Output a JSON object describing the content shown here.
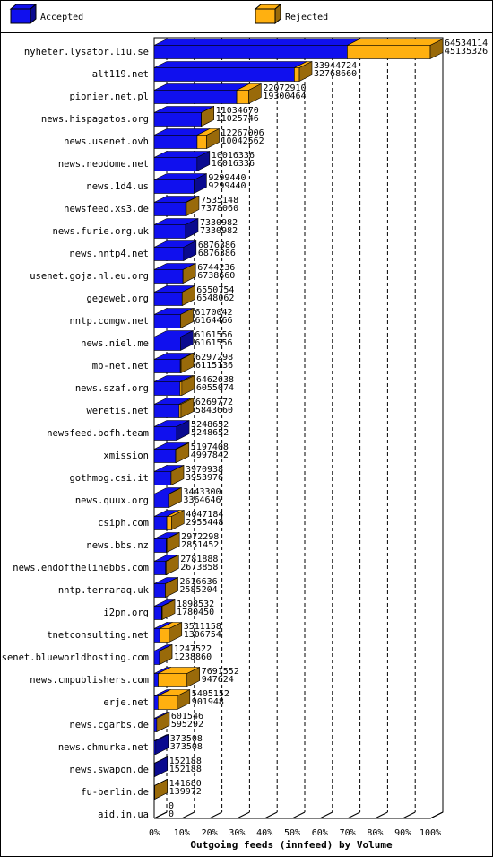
{
  "chart_data": {
    "type": "bar3d-stacked-horizontal",
    "xlabel": "Outgoing feeds (innfeed) by Volume",
    "categories": [
      "nyheter.lysator.liu.se",
      "alt119.net",
      "pionier.net.pl",
      "news.hispagatos.org",
      "news.usenet.ovh",
      "news.neodome.net",
      "news.1d4.us",
      "newsfeed.xs3.de",
      "news.furie.org.uk",
      "news.nntp4.net",
      "usenet.goja.nl.eu.org",
      "gegeweb.org",
      "nntp.comgw.net",
      "news.niel.me",
      "mb-net.net",
      "news.szaf.org",
      "weretis.net",
      "newsfeed.bofh.team",
      "xmission",
      "gothmog.csi.it",
      "news.quux.org",
      "csiph.com",
      "news.bbs.nz",
      "news.endofthelinebbs.com",
      "nntp.terraraq.uk",
      "i2pn.org",
      "tnetconsulting.net",
      "usenet.blueworldhosting.com",
      "news.cmpublishers.com",
      "erje.net",
      "news.cgarbs.de",
      "news.chmurka.net",
      "news.swapon.de",
      "fu-berlin.de",
      "aid.in.ua"
    ],
    "totals": [
      64534114,
      33944724,
      22072910,
      11034670,
      12267006,
      10016336,
      9299440,
      7535148,
      7330982,
      6876386,
      6744236,
      6550754,
      6170042,
      6161556,
      6297298,
      6462638,
      6269772,
      5248652,
      5197408,
      3970938,
      3443300,
      4047184,
      2972298,
      2781888,
      2616636,
      1898532,
      3511158,
      1247522,
      7691552,
      5405152,
      601546,
      373508,
      152188,
      141680,
      0
    ],
    "series": [
      {
        "name": "Accepted",
        "color": "#1010ee",
        "values": [
          45135326,
          32768660,
          19300464,
          11025746,
          10042562,
          10016336,
          9299440,
          7378060,
          7330982,
          6876386,
          6738660,
          6548062,
          6164466,
          6161556,
          6115136,
          6055074,
          5843660,
          5248652,
          4997842,
          3953976,
          3364646,
          2955448,
          2851452,
          2673858,
          2585204,
          1780450,
          1306754,
          1238860,
          947624,
          901948,
          595292,
          373508,
          152188,
          139972,
          0
        ]
      },
      {
        "name": "Rejected",
        "color": "#ffb010",
        "values": [
          19398788,
          1176064,
          2772446,
          8924,
          2224444,
          0,
          0,
          157088,
          0,
          0,
          5576,
          2692,
          5576,
          0,
          182162,
          407564,
          426112,
          0,
          199566,
          16962,
          78654,
          1091736,
          120846,
          108030,
          31432,
          118082,
          2204404,
          8662,
          6743928,
          4503204,
          6254,
          0,
          0,
          1708,
          0
        ]
      }
    ],
    "xlim": [
      0,
      64534114
    ],
    "xticks": [
      {
        "value": 0,
        "label": "0%"
      },
      {
        "value": 6453411.4,
        "label": "10%"
      },
      {
        "value": 12906822.8,
        "label": "20%"
      },
      {
        "value": 19360234.2,
        "label": "30%"
      },
      {
        "value": 25813645.6,
        "label": "40%"
      },
      {
        "value": 32267057,
        "label": "50%"
      },
      {
        "value": 38720468.4,
        "label": "60%"
      },
      {
        "value": 45173879.8,
        "label": "70%"
      },
      {
        "value": 51627291.2,
        "label": "80%"
      },
      {
        "value": 58080702.6,
        "label": "90%"
      },
      {
        "value": 64534114,
        "label": "100%"
      }
    ],
    "grid": true
  }
}
